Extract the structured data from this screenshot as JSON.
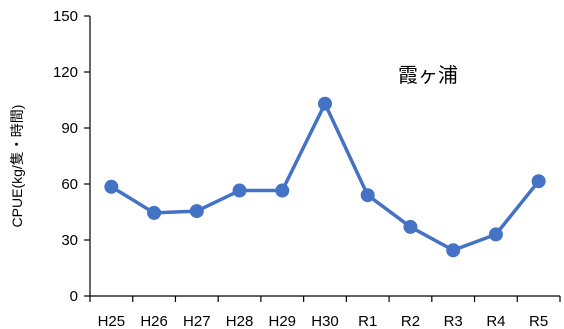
{
  "chart_data": {
    "type": "line",
    "categories": [
      "H25",
      "H26",
      "H27",
      "H28",
      "H29",
      "H30",
      "R1",
      "R2",
      "R3",
      "R4",
      "R5"
    ],
    "series": [
      {
        "values": [
          58.5,
          44.5,
          45.5,
          56.5,
          56.5,
          103,
          54,
          37,
          24.5,
          33,
          61.5
        ]
      }
    ],
    "ylabel": "CPUE(kg/隻・時間)",
    "xlabel": "",
    "ylim": [
      0,
      150
    ],
    "yticks": [
      0,
      30,
      60,
      90,
      120,
      150
    ],
    "grid": false,
    "legend": "none",
    "annotation": "霞ヶ浦",
    "colors": {
      "line": "#4472C4",
      "marker": "#4472C4",
      "axis": "#000000"
    }
  }
}
